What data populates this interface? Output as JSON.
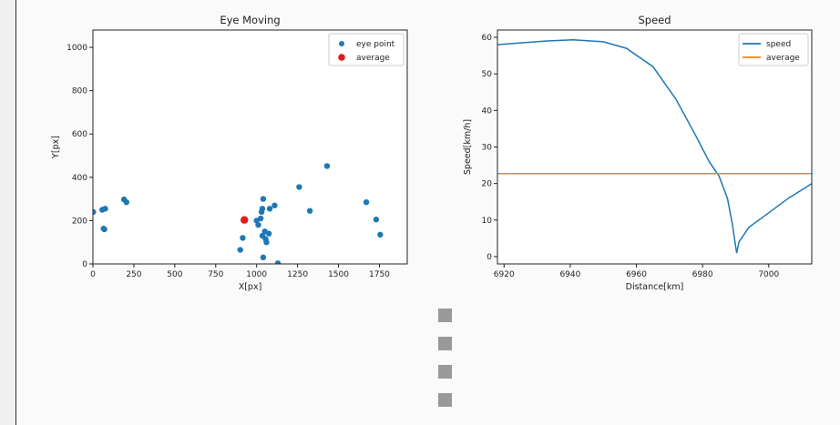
{
  "chart_data": [
    {
      "type": "scatter",
      "title": "Eye Moving",
      "xlabel": "X[px]",
      "ylabel": "Y[px]",
      "xlim": [
        0,
        1920
      ],
      "ylim": [
        0,
        1080
      ],
      "xticks": [
        0,
        250,
        500,
        750,
        1000,
        1250,
        1500,
        1750
      ],
      "yticks": [
        0,
        200,
        400,
        600,
        800,
        1000
      ],
      "grid": false,
      "legend_position": "top-right",
      "series": [
        {
          "name": "eye point",
          "color": "#1f77b4",
          "points": [
            [
              2,
              240
            ],
            [
              57,
              250
            ],
            [
              75,
              255
            ],
            [
              65,
              163
            ],
            [
              70,
              160
            ],
            [
              190,
              298
            ],
            [
              205,
              285
            ],
            [
              900,
              65
            ],
            [
              915,
              120
            ],
            [
              1000,
              200
            ],
            [
              1010,
              180
            ],
            [
              1025,
              210
            ],
            [
              1030,
              240
            ],
            [
              1035,
              255
            ],
            [
              1040,
              300
            ],
            [
              1035,
              130
            ],
            [
              1050,
              150
            ],
            [
              1055,
              115
            ],
            [
              1060,
              100
            ],
            [
              1075,
              140
            ],
            [
              1080,
              255
            ],
            [
              1110,
              270
            ],
            [
              1040,
              30
            ],
            [
              1130,
              3
            ],
            [
              1260,
              355
            ],
            [
              1325,
              245
            ],
            [
              1430,
              452
            ],
            [
              1670,
              285
            ],
            [
              1730,
              205
            ],
            [
              1755,
              135
            ]
          ]
        },
        {
          "name": "average",
          "color": "#e31a1c",
          "points": [
            [
              925,
              203
            ]
          ]
        }
      ]
    },
    {
      "type": "line",
      "title": "Speed",
      "xlabel": "Distance[km]",
      "ylabel": "Speed[km/h]",
      "xlim": [
        6918,
        7013
      ],
      "ylim": [
        -2,
        62
      ],
      "xticks": [
        6920,
        6940,
        6960,
        6980,
        7000
      ],
      "yticks": [
        0,
        10,
        20,
        30,
        40,
        50,
        60
      ],
      "grid": false,
      "legend_position": "top-right",
      "series": [
        {
          "name": "speed",
          "color": "#1f77b4",
          "x": [
            6918,
            6925,
            6933,
            6941,
            6950,
            6957,
            6965,
            6972,
            6978,
            6982,
            6985,
            6987.5,
            6989,
            6989.8,
            6990.3,
            6991,
            6994,
            7000,
            7006,
            7013
          ],
          "y": [
            58,
            58.5,
            59,
            59.3,
            58.8,
            57,
            52,
            43,
            33,
            26,
            22,
            16,
            9,
            4,
            1,
            4,
            8,
            12,
            16,
            20
          ]
        },
        {
          "name": "average",
          "color": "#ff7f0e",
          "x": [
            6918,
            7013
          ],
          "y": [
            22.7,
            22.7
          ]
        }
      ]
    }
  ]
}
